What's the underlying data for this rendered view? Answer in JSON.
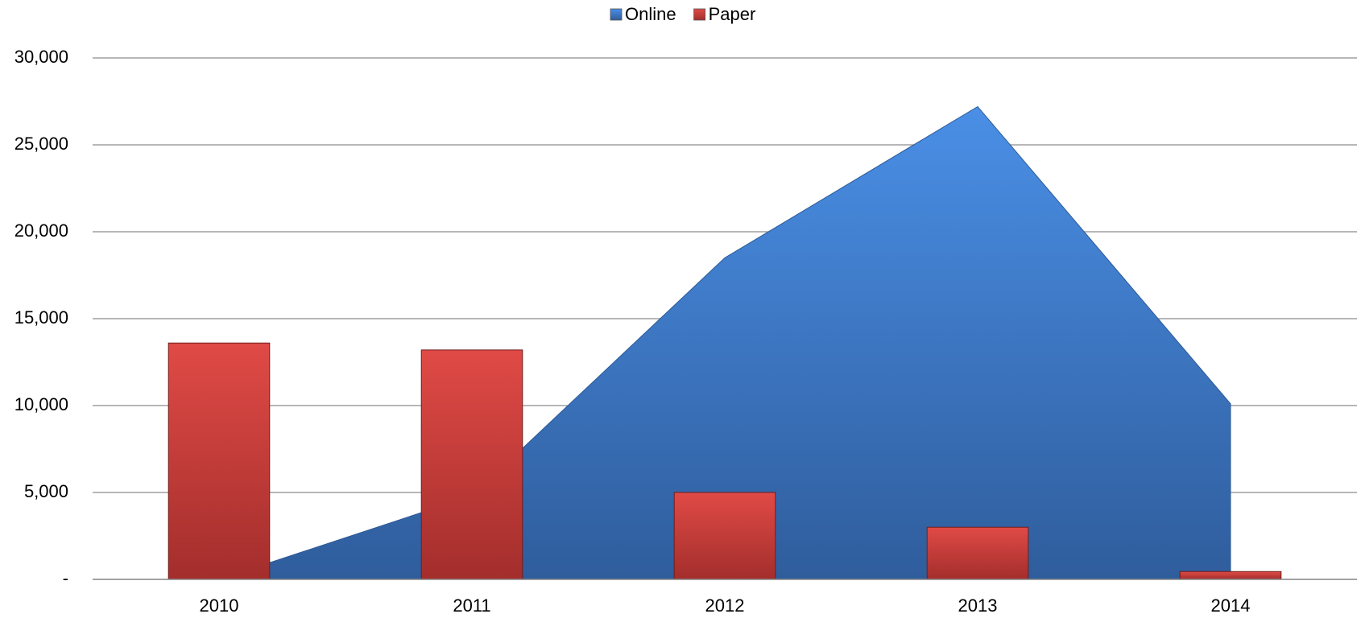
{
  "chart_data": {
    "type": "area-bar",
    "categories": [
      "2010",
      "2011",
      "2012",
      "2013",
      "2014"
    ],
    "series": [
      {
        "name": "Online",
        "type": "area",
        "color": "#3f77c8",
        "values": [
          0,
          4800,
          18500,
          27200,
          10100
        ]
      },
      {
        "name": "Paper",
        "type": "bar",
        "color": "#c83a38",
        "values": [
          13600,
          13200,
          5000,
          3000,
          450
        ]
      }
    ],
    "ylim": [
      0,
      30000
    ],
    "yticks": [
      {
        "value": 0,
        "label": "-"
      },
      {
        "value": 5000,
        "label": "5,000"
      },
      {
        "value": 10000,
        "label": "10,000"
      },
      {
        "value": 15000,
        "label": "15,000"
      },
      {
        "value": 20000,
        "label": "20,000"
      },
      {
        "value": 25000,
        "label": "25,000"
      },
      {
        "value": 30000,
        "label": "30,000"
      }
    ],
    "grid": true,
    "legend": "top"
  }
}
